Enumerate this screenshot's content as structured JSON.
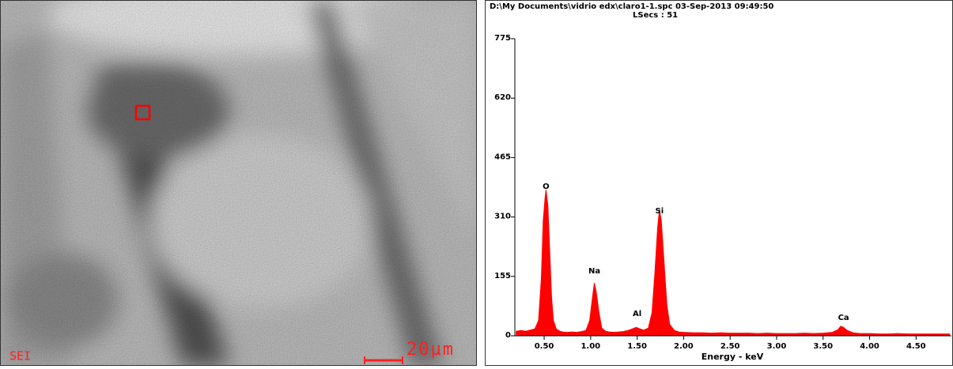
{
  "chart_data": {
    "type": "area",
    "title": "D:\\My Documents\\vidrio edx\\claro1-1.spc  03-Sep-2013 09:49:50",
    "subtitle": "LSecs : 51",
    "x_label": "Energy - keV",
    "color": "#ff0000",
    "x": [
      0.2,
      0.25,
      0.3,
      0.35,
      0.4,
      0.44,
      0.47,
      0.49,
      0.51,
      0.52,
      0.54,
      0.56,
      0.58,
      0.6,
      0.63,
      0.67,
      0.7,
      0.75,
      0.8,
      0.85,
      0.9,
      0.95,
      0.99,
      1.02,
      1.04,
      1.06,
      1.09,
      1.12,
      1.16,
      1.2,
      1.25,
      1.3,
      1.35,
      1.4,
      1.45,
      1.49,
      1.53,
      1.57,
      1.62,
      1.66,
      1.69,
      1.72,
      1.74,
      1.76,
      1.79,
      1.82,
      1.85,
      1.9,
      1.95,
      2.0,
      2.1,
      2.2,
      2.3,
      2.4,
      2.5,
      2.6,
      2.7,
      2.8,
      2.9,
      3.0,
      3.1,
      3.2,
      3.3,
      3.4,
      3.5,
      3.6,
      3.66,
      3.69,
      3.72,
      3.76,
      3.82,
      3.9,
      4.0,
      4.1,
      4.2,
      4.3,
      4.4,
      4.5,
      4.6,
      4.7,
      4.8,
      4.86
    ],
    "values": [
      12,
      14,
      12,
      15,
      18,
      40,
      150,
      300,
      360,
      381,
      340,
      220,
      100,
      40,
      18,
      12,
      10,
      9,
      10,
      9,
      11,
      14,
      40,
      100,
      138,
      115,
      60,
      20,
      12,
      10,
      9,
      10,
      11,
      14,
      18,
      22,
      18,
      15,
      20,
      60,
      160,
      280,
      330,
      300,
      190,
      80,
      30,
      14,
      10,
      9,
      8,
      8,
      7,
      8,
      7,
      7,
      7,
      6,
      7,
      6,
      6,
      6,
      7,
      6,
      7,
      9,
      16,
      25,
      22,
      14,
      8,
      6,
      6,
      5,
      5,
      6,
      5,
      5,
      5,
      5,
      5,
      5
    ],
    "peaks": [
      {
        "label": "O",
        "x": 0.52,
        "y": 390
      },
      {
        "label": "Na",
        "x": 1.04,
        "y": 169
      },
      {
        "label": "Al",
        "x": 1.5,
        "y": 58
      },
      {
        "label": "Si",
        "x": 1.74,
        "y": 326
      },
      {
        "label": "Ca",
        "x": 3.72,
        "y": 47
      }
    ],
    "xlim": [
      0.185,
      4.88
    ],
    "ylim": [
      0,
      775
    ],
    "xticks": [
      {
        "value": 0.5,
        "label": "0.50"
      },
      {
        "value": 1,
        "label": "1.00"
      },
      {
        "value": 1.5,
        "label": "1.50"
      },
      {
        "value": 2,
        "label": "2.00"
      },
      {
        "value": 2.5,
        "label": "2.50"
      },
      {
        "value": 3,
        "label": "3.00"
      },
      {
        "value": 3.5,
        "label": "3.50"
      },
      {
        "value": 4,
        "label": "4.00"
      },
      {
        "value": 4.5,
        "label": "4.50"
      }
    ],
    "yticks": [
      0,
      155,
      310,
      465,
      620,
      775
    ],
    "grid": false
  },
  "micrograph": {
    "detector": "SEI",
    "scale_bar": "20µm"
  }
}
